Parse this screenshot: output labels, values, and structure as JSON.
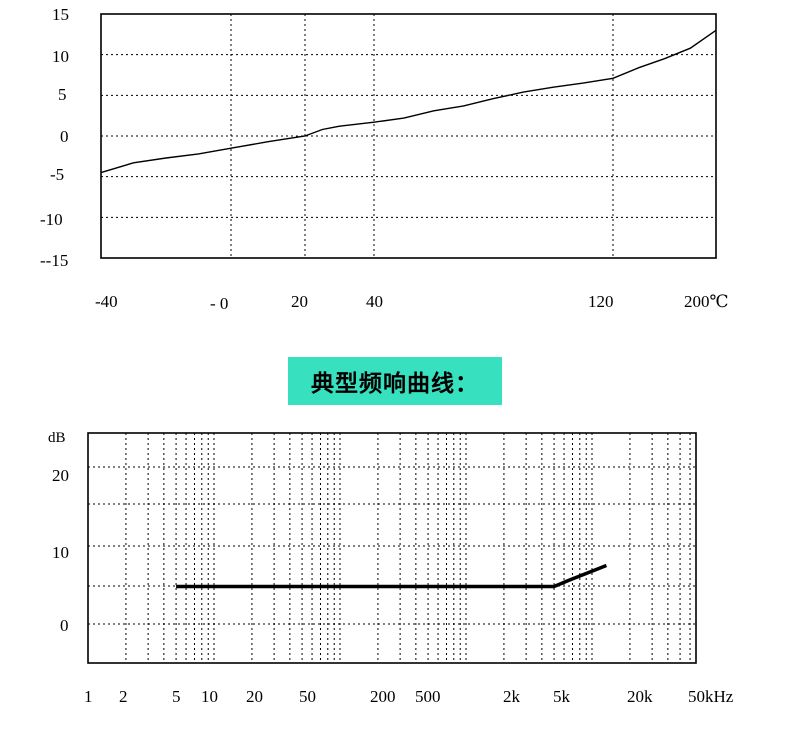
{
  "banner_title": "典型频响曲线：",
  "chart_data": [
    {
      "type": "line",
      "title": "",
      "xlabel": "",
      "ylabel": "",
      "x_ticks": [
        "-40",
        "- 0",
        "20",
        "40",
        "120",
        "200℃"
      ],
      "y_ticks": [
        "15",
        "10",
        "5",
        "0",
        "-5",
        "-10",
        "--15"
      ],
      "ylim": [
        -15,
        15
      ],
      "grid": true,
      "series": [
        {
          "x": [
            -40,
            -30,
            -20,
            -10,
            0,
            10,
            20,
            25,
            30,
            40,
            50,
            60,
            70,
            80,
            90,
            100,
            110,
            120,
            140,
            160,
            180,
            200
          ],
          "y": [
            -4.5,
            -3.3,
            -2.7,
            -2.2,
            -1.5,
            -0.7,
            0.0,
            0.8,
            1.2,
            1.7,
            2.2,
            3.1,
            3.7,
            4.6,
            5.4,
            6.0,
            6.5,
            7.1,
            8.4,
            9.5,
            10.8,
            13.0
          ]
        }
      ]
    },
    {
      "type": "line",
      "title": "",
      "ylabel": "dB",
      "x_ticks": [
        "1",
        "2",
        "5",
        "10",
        "20",
        "50",
        "200",
        "500",
        "2k",
        "5k",
        "20k",
        "50kHz"
      ],
      "y_ticks": [
        "20",
        "10",
        "0"
      ],
      "grid": true,
      "series": [
        {
          "x": [
            5,
            100,
            1000,
            5000,
            6500,
            13000
          ],
          "y": [
            5,
            5,
            5,
            5,
            5.8,
            7.8
          ]
        }
      ]
    }
  ]
}
